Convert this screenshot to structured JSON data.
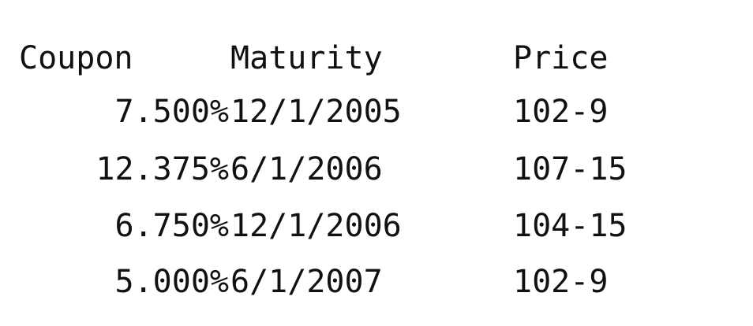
{
  "headers": {
    "coupon": "Coupon",
    "maturity": "Maturity",
    "price": "Price"
  },
  "rows": [
    {
      "coupon": "7.500%",
      "maturity": "12/1/2005",
      "price": "102-9"
    },
    {
      "coupon": "12.375%",
      "maturity": "6/1/2006",
      "price": "107-15"
    },
    {
      "coupon": "6.750%",
      "maturity": "12/1/2006",
      "price": "104-15"
    },
    {
      "coupon": "5.000%",
      "maturity": "6/1/2007",
      "price": "102-9"
    }
  ]
}
